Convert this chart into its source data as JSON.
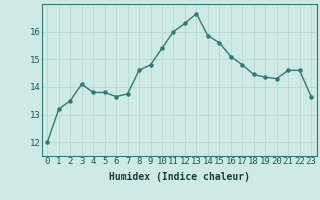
{
  "x": [
    0,
    1,
    2,
    3,
    4,
    5,
    6,
    7,
    8,
    9,
    10,
    11,
    12,
    13,
    14,
    15,
    16,
    17,
    18,
    19,
    20,
    21,
    22,
    23
  ],
  "y": [
    12.0,
    13.2,
    13.5,
    14.1,
    13.8,
    13.8,
    13.65,
    13.75,
    14.6,
    14.8,
    15.4,
    16.0,
    16.3,
    16.65,
    15.85,
    15.6,
    15.1,
    14.8,
    14.45,
    14.35,
    14.3,
    14.6,
    14.6,
    13.65
  ],
  "line_color": "#2e7d6e",
  "marker": "o",
  "marker_size": 2.2,
  "bg_color": "#cdeae6",
  "grid_color": "#b8d8d4",
  "xlabel": "Humidex (Indice chaleur)",
  "ylim": [
    11.5,
    17.0
  ],
  "xlim": [
    -0.5,
    23.5
  ],
  "yticks": [
    12,
    13,
    14,
    15,
    16
  ],
  "xticks": [
    0,
    1,
    2,
    3,
    4,
    5,
    6,
    7,
    8,
    9,
    10,
    11,
    12,
    13,
    14,
    15,
    16,
    17,
    18,
    19,
    20,
    21,
    22,
    23
  ],
  "xlabel_fontsize": 7,
  "tick_fontsize": 6.5,
  "line_width": 1.0,
  "spine_color": "#2e7d6e"
}
